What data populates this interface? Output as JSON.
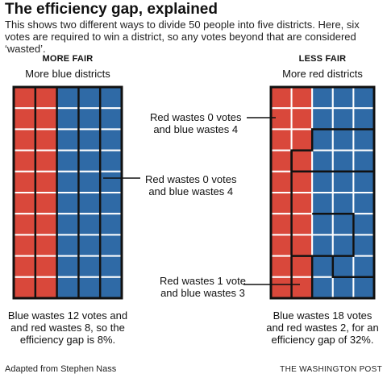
{
  "title": "The efficiency gap, explained",
  "subtitle": "This shows two different ways to divide 50 people into five districts. Here, six votes are required to win a district, so any votes beyond that are considered ‘wasted’.",
  "colors": {
    "red": "#d9483b",
    "blue": "#2f6aa6",
    "border": "#111111"
  },
  "left_panel": {
    "heading": "MORE FAIR",
    "subheading": "More blue districts",
    "columns": [
      "red",
      "red",
      "blue",
      "blue",
      "blue"
    ],
    "callouts": [
      {
        "line1": "Red wastes 0 votes",
        "line2": "and blue wastes 4"
      }
    ],
    "caption": {
      "line1": "Blue wastes 12 votes and",
      "line2": "and red wastes 8, so the",
      "line3": "efficiency gap is 8%."
    }
  },
  "right_panel": {
    "heading": "LESS FAIR",
    "subheading": "More red districts",
    "callouts": [
      {
        "line1": "Red wastes 0 votes",
        "line2": "and blue wastes 4"
      },
      {
        "line1": "Red wastes 1 vote",
        "line2": "and blue wastes 3"
      }
    ],
    "caption": {
      "line1": "Blue wastes 18 votes",
      "line2": "and red wastes 2, for an",
      "line3": "efficiency gap of 32%."
    }
  },
  "footer": {
    "credit": "Adapted from Stephen Nass",
    "source": "THE WASHINGTON POST"
  }
}
